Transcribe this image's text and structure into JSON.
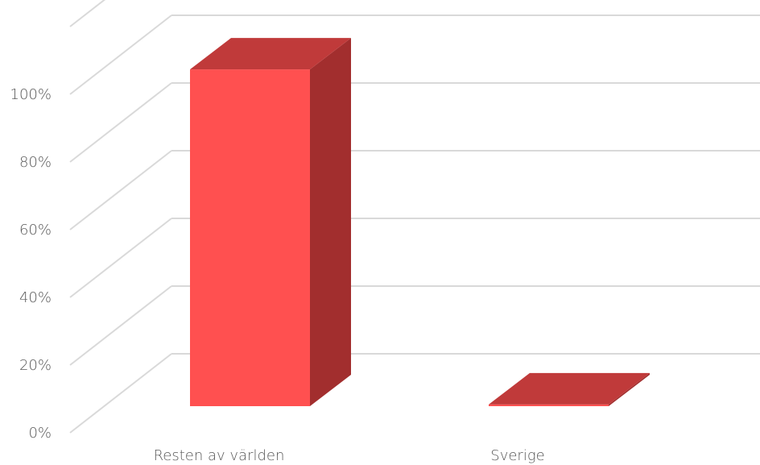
{
  "chart_data": {
    "type": "bar",
    "style": "3d-column",
    "categories": [
      "Resten av världen",
      "Sverige"
    ],
    "values": [
      99.5,
      0.5
    ],
    "ylim": [
      0,
      100
    ],
    "yticks": [
      "0%",
      "20%",
      "40%",
      "60%",
      "80%",
      "100%"
    ],
    "grid": true,
    "legend": "none",
    "colors": {
      "bar_front": "#ff5050",
      "bar_side": "#a22e2e",
      "bar_top": "#c03a3a",
      "grid": "#d9d9d9",
      "text": "#595959"
    }
  }
}
